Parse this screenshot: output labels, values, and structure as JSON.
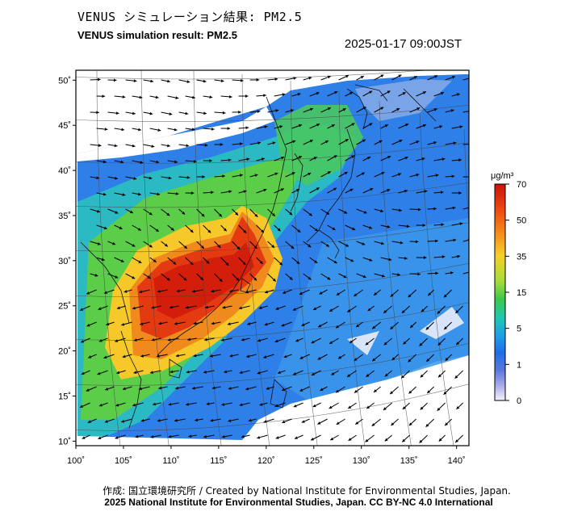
{
  "title_ja": "VENUS シミュレーション結果: PM2.5",
  "title_en": "VENUS simulation result: PM2.5",
  "datetime": "2025-01-17 09:00JST",
  "footer_credit": "作成: 国立環境研究所 / Created by National Institute for Environmental Studies, Japan.",
  "footer_license": "2025 National Institute for Environmental Studies, Japan. CC BY-NC 4.0 International",
  "map": {
    "lon_labels": [
      "100˚",
      "105˚",
      "110˚",
      "115˚",
      "120˚",
      "125˚",
      "130˚",
      "135˚",
      "140˚"
    ],
    "lon_values": [
      100,
      105,
      110,
      115,
      120,
      125,
      130,
      135,
      140
    ],
    "lat_labels": [
      "50˚",
      "45˚",
      "40˚",
      "35˚",
      "30˚",
      "25˚",
      "20˚",
      "15˚",
      "10˚"
    ],
    "lat_values": [
      50,
      45,
      40,
      35,
      30,
      25,
      20,
      15,
      10
    ]
  },
  "colorbar": {
    "unit": "μg/m³",
    "tick_labels": [
      "70",
      "50",
      "35",
      "15",
      "5",
      "1",
      "0"
    ],
    "colors": [
      "#d01e0a",
      "#ee5a14",
      "#f7a01e",
      "#f5d22a",
      "#9fdc3c",
      "#3fc84a",
      "#1ec8a0",
      "#1ea0e6",
      "#1e6ee6",
      "#5a78dc",
      "#a0a0e6",
      "#ececf8"
    ]
  }
}
